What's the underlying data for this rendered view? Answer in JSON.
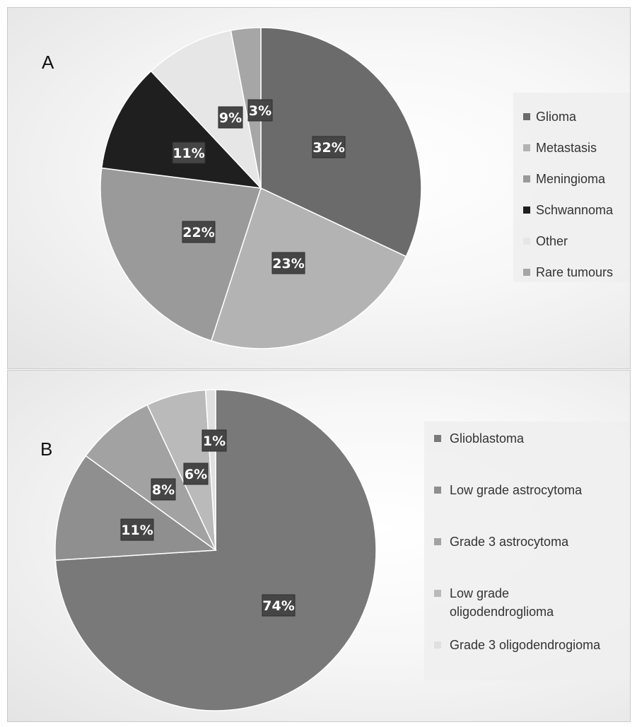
{
  "chart_data": [
    {
      "type": "pie",
      "panel_label": "A",
      "title": "",
      "categories": [
        "Glioma",
        "Metastasis",
        "Meningioma",
        "Schwannoma",
        "Other",
        "Rare tumours"
      ],
      "values": [
        32,
        23,
        22,
        11,
        9,
        3
      ],
      "data_labels": [
        "32%",
        "23%",
        "22%",
        "11%",
        "9%",
        "3%"
      ],
      "colors": [
        "#6b6b6b",
        "#b3b3b3",
        "#9a9a9a",
        "#1f1f1f",
        "#e6e6e6",
        "#a6a6a6"
      ],
      "legend_position": "right"
    },
    {
      "type": "pie",
      "panel_label": "B",
      "title": "",
      "categories": [
        "Glioblastoma",
        "Low grade astrocytoma",
        "Grade 3 astrocytoma",
        "Low grade oligodendroglioma",
        "Grade 3 oligodendrogioma"
      ],
      "legend_lines": [
        [
          "Glioblastoma"
        ],
        [
          "Low grade astrocytoma"
        ],
        [
          "Grade 3 astrocytoma"
        ],
        [
          "Low grade",
          "oligodendroglioma"
        ],
        [
          "Grade 3 oligodendrogioma"
        ]
      ],
      "values": [
        74,
        11,
        8,
        6,
        1
      ],
      "data_labels": [
        "74%",
        "11%",
        "8%",
        "6%",
        "1%"
      ],
      "colors": [
        "#797979",
        "#8f8f8f",
        "#a2a2a2",
        "#bababa",
        "#e0e0e0"
      ],
      "legend_position": "right"
    }
  ]
}
